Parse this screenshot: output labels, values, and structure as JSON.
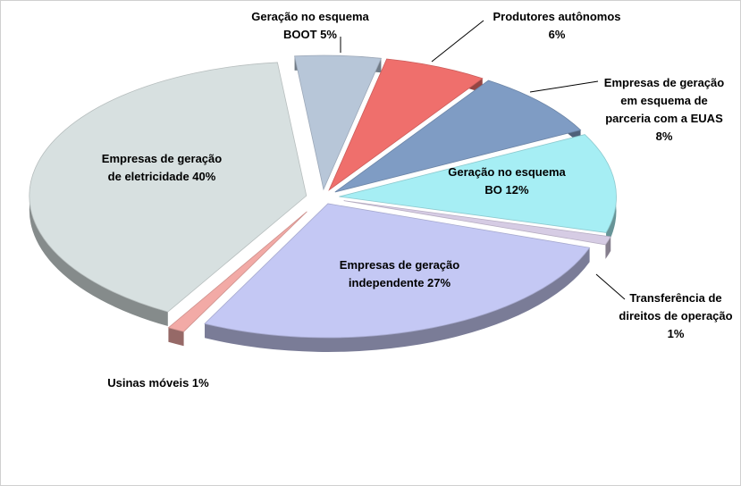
{
  "chart_data": {
    "type": "pie",
    "title": "",
    "slices": [
      {
        "label_lines": [
          "Geração no esquema",
          "BOOT  5%"
        ],
        "value": 5,
        "color": "#b7c6d8"
      },
      {
        "label_lines": [
          "Produtores autônomos",
          "6%"
        ],
        "value": 6,
        "color": "#ef6f6c"
      },
      {
        "label_lines": [
          "Empresas de geração",
          "em esquema de",
          "parceria com a EUAS",
          "8%"
        ],
        "value": 8,
        "color": "#7f9cc4"
      },
      {
        "label_lines": [
          "Geração no esquema",
          "BO  12%"
        ],
        "value": 12,
        "color": "#a6eef4"
      },
      {
        "label_lines": [
          "Transferência de",
          "direitos de operação",
          "1%"
        ],
        "value": 1,
        "color": "#d6cce4"
      },
      {
        "label_lines": [
          "Empresas de geração",
          "independente  27%"
        ],
        "value": 27,
        "color": "#c4c8f4"
      },
      {
        "label_lines": [
          "Usinas móveis 1%"
        ],
        "value": 1,
        "color": "#f2aaa6"
      },
      {
        "label_lines": [
          "Empresas de geração",
          "de eletricidade  40%"
        ],
        "value": 40,
        "color": "#d7e0e0"
      }
    ]
  }
}
